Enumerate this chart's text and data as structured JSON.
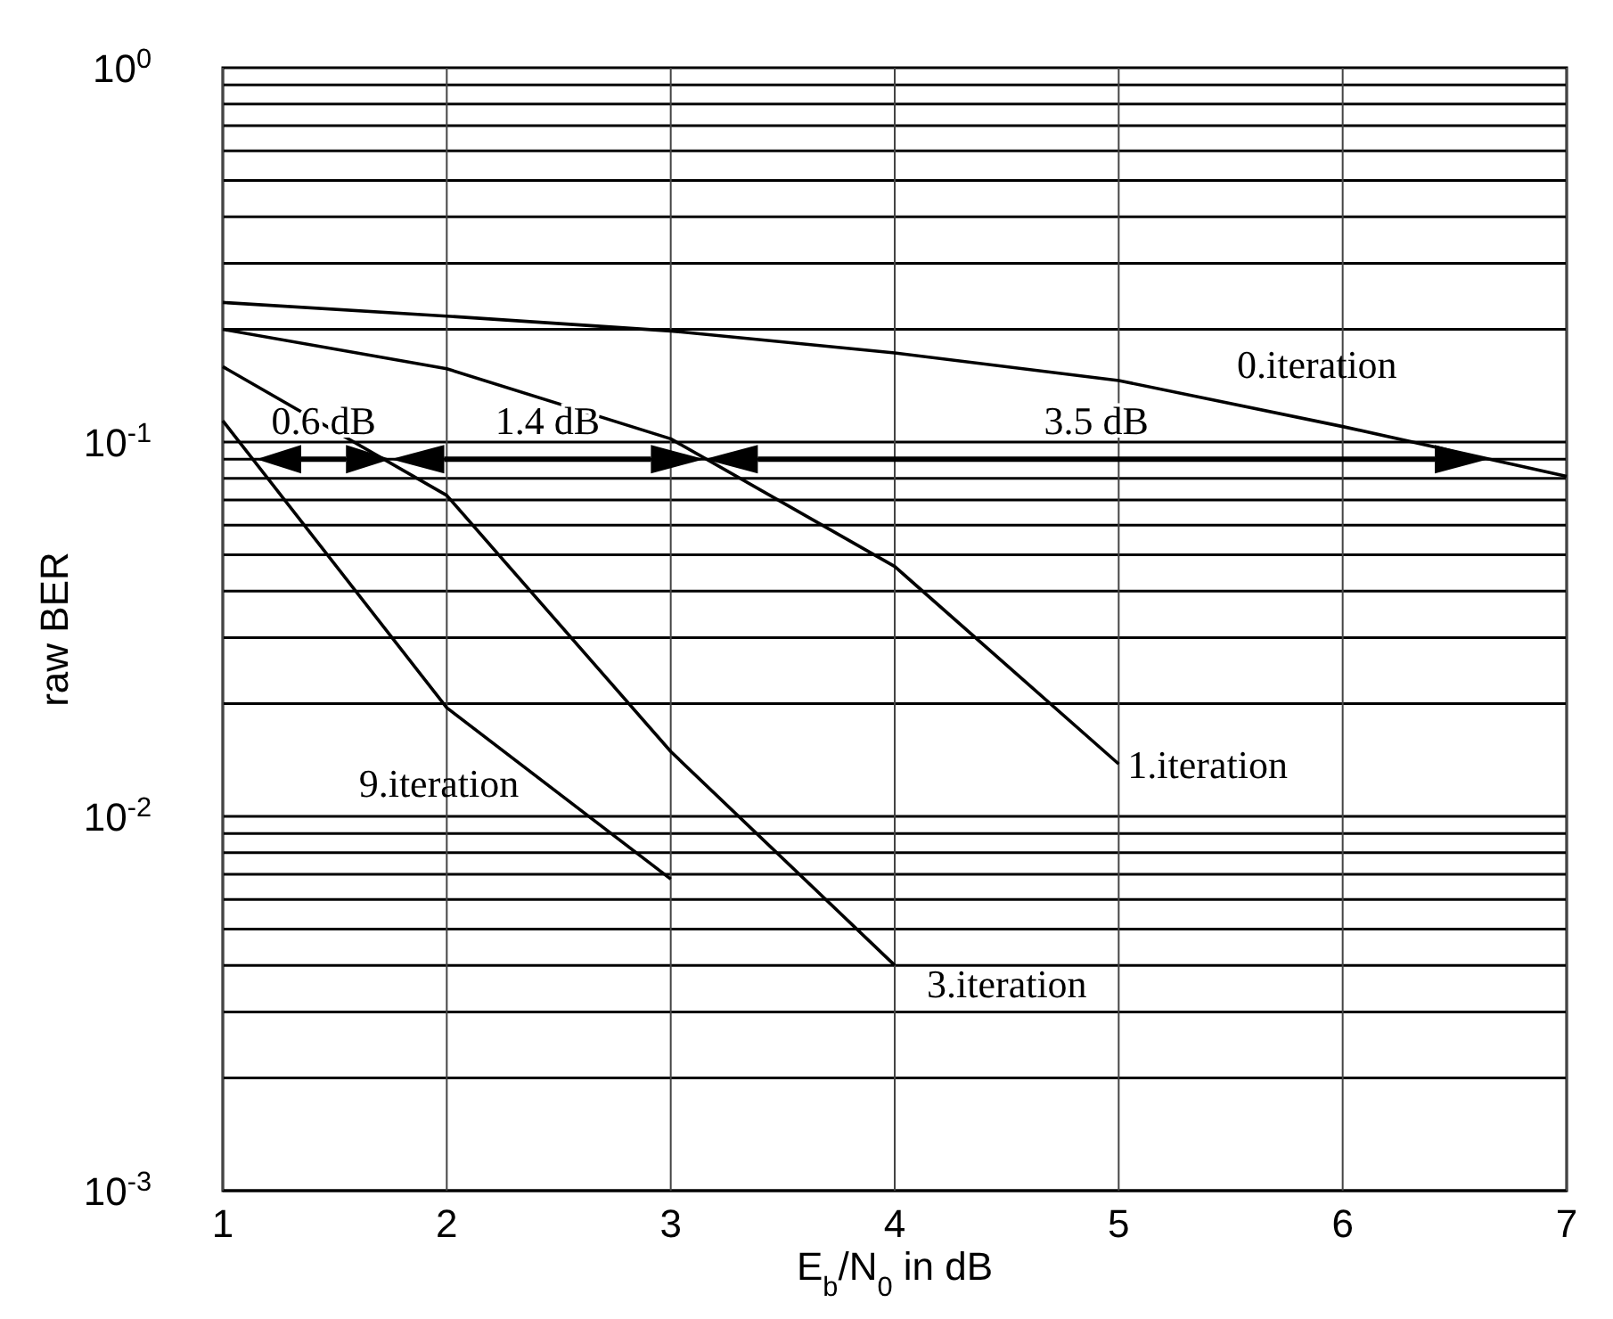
{
  "chart_data": {
    "type": "line",
    "xlabel": "E$_{b}$/N$_{0}$ in dB",
    "ylabel": "raw BER",
    "log": "y",
    "grid": true,
    "marker": "none",
    "line_style": "solid",
    "x": [
      1,
      2,
      3,
      4,
      5,
      6,
      7
    ],
    "xlim": [
      1,
      7
    ],
    "xticks": [
      1,
      2,
      3,
      4,
      5,
      6,
      7
    ],
    "ylim": [
      0.001,
      1
    ],
    "yticks": [
      {
        "value": 0.001,
        "label": "10$^{-3}$"
      },
      {
        "value": 0.01,
        "label": "10$^{-2}$"
      },
      {
        "value": 0.1,
        "label": "10$^{-1}$"
      },
      {
        "value": 1,
        "label": "10$^{0}$"
      }
    ],
    "series": [
      {
        "name": "0.iteration",
        "color": "#000000",
        "values": [
          0.236,
          0.217,
          0.198,
          0.173,
          0.146,
          0.11,
          0.081
        ]
      },
      {
        "name": "1.iteration",
        "color": "#000000",
        "x": [
          1,
          2,
          3,
          4,
          5
        ],
        "values": [
          0.2,
          0.157,
          0.102,
          0.0465,
          0.0138
        ]
      },
      {
        "name": "3.iteration",
        "color": "#000000",
        "x": [
          1,
          2,
          3,
          4
        ],
        "values": [
          0.159,
          0.072,
          0.0149,
          0.004
        ]
      },
      {
        "name": "9.iteration",
        "color": "#000000",
        "x": [
          1,
          2,
          3
        ],
        "values": [
          0.114,
          0.0195,
          0.0068
        ]
      }
    ],
    "annotations": [
      "0.6 dB",
      "1.4 dB",
      "3.5 dB"
    ]
  }
}
